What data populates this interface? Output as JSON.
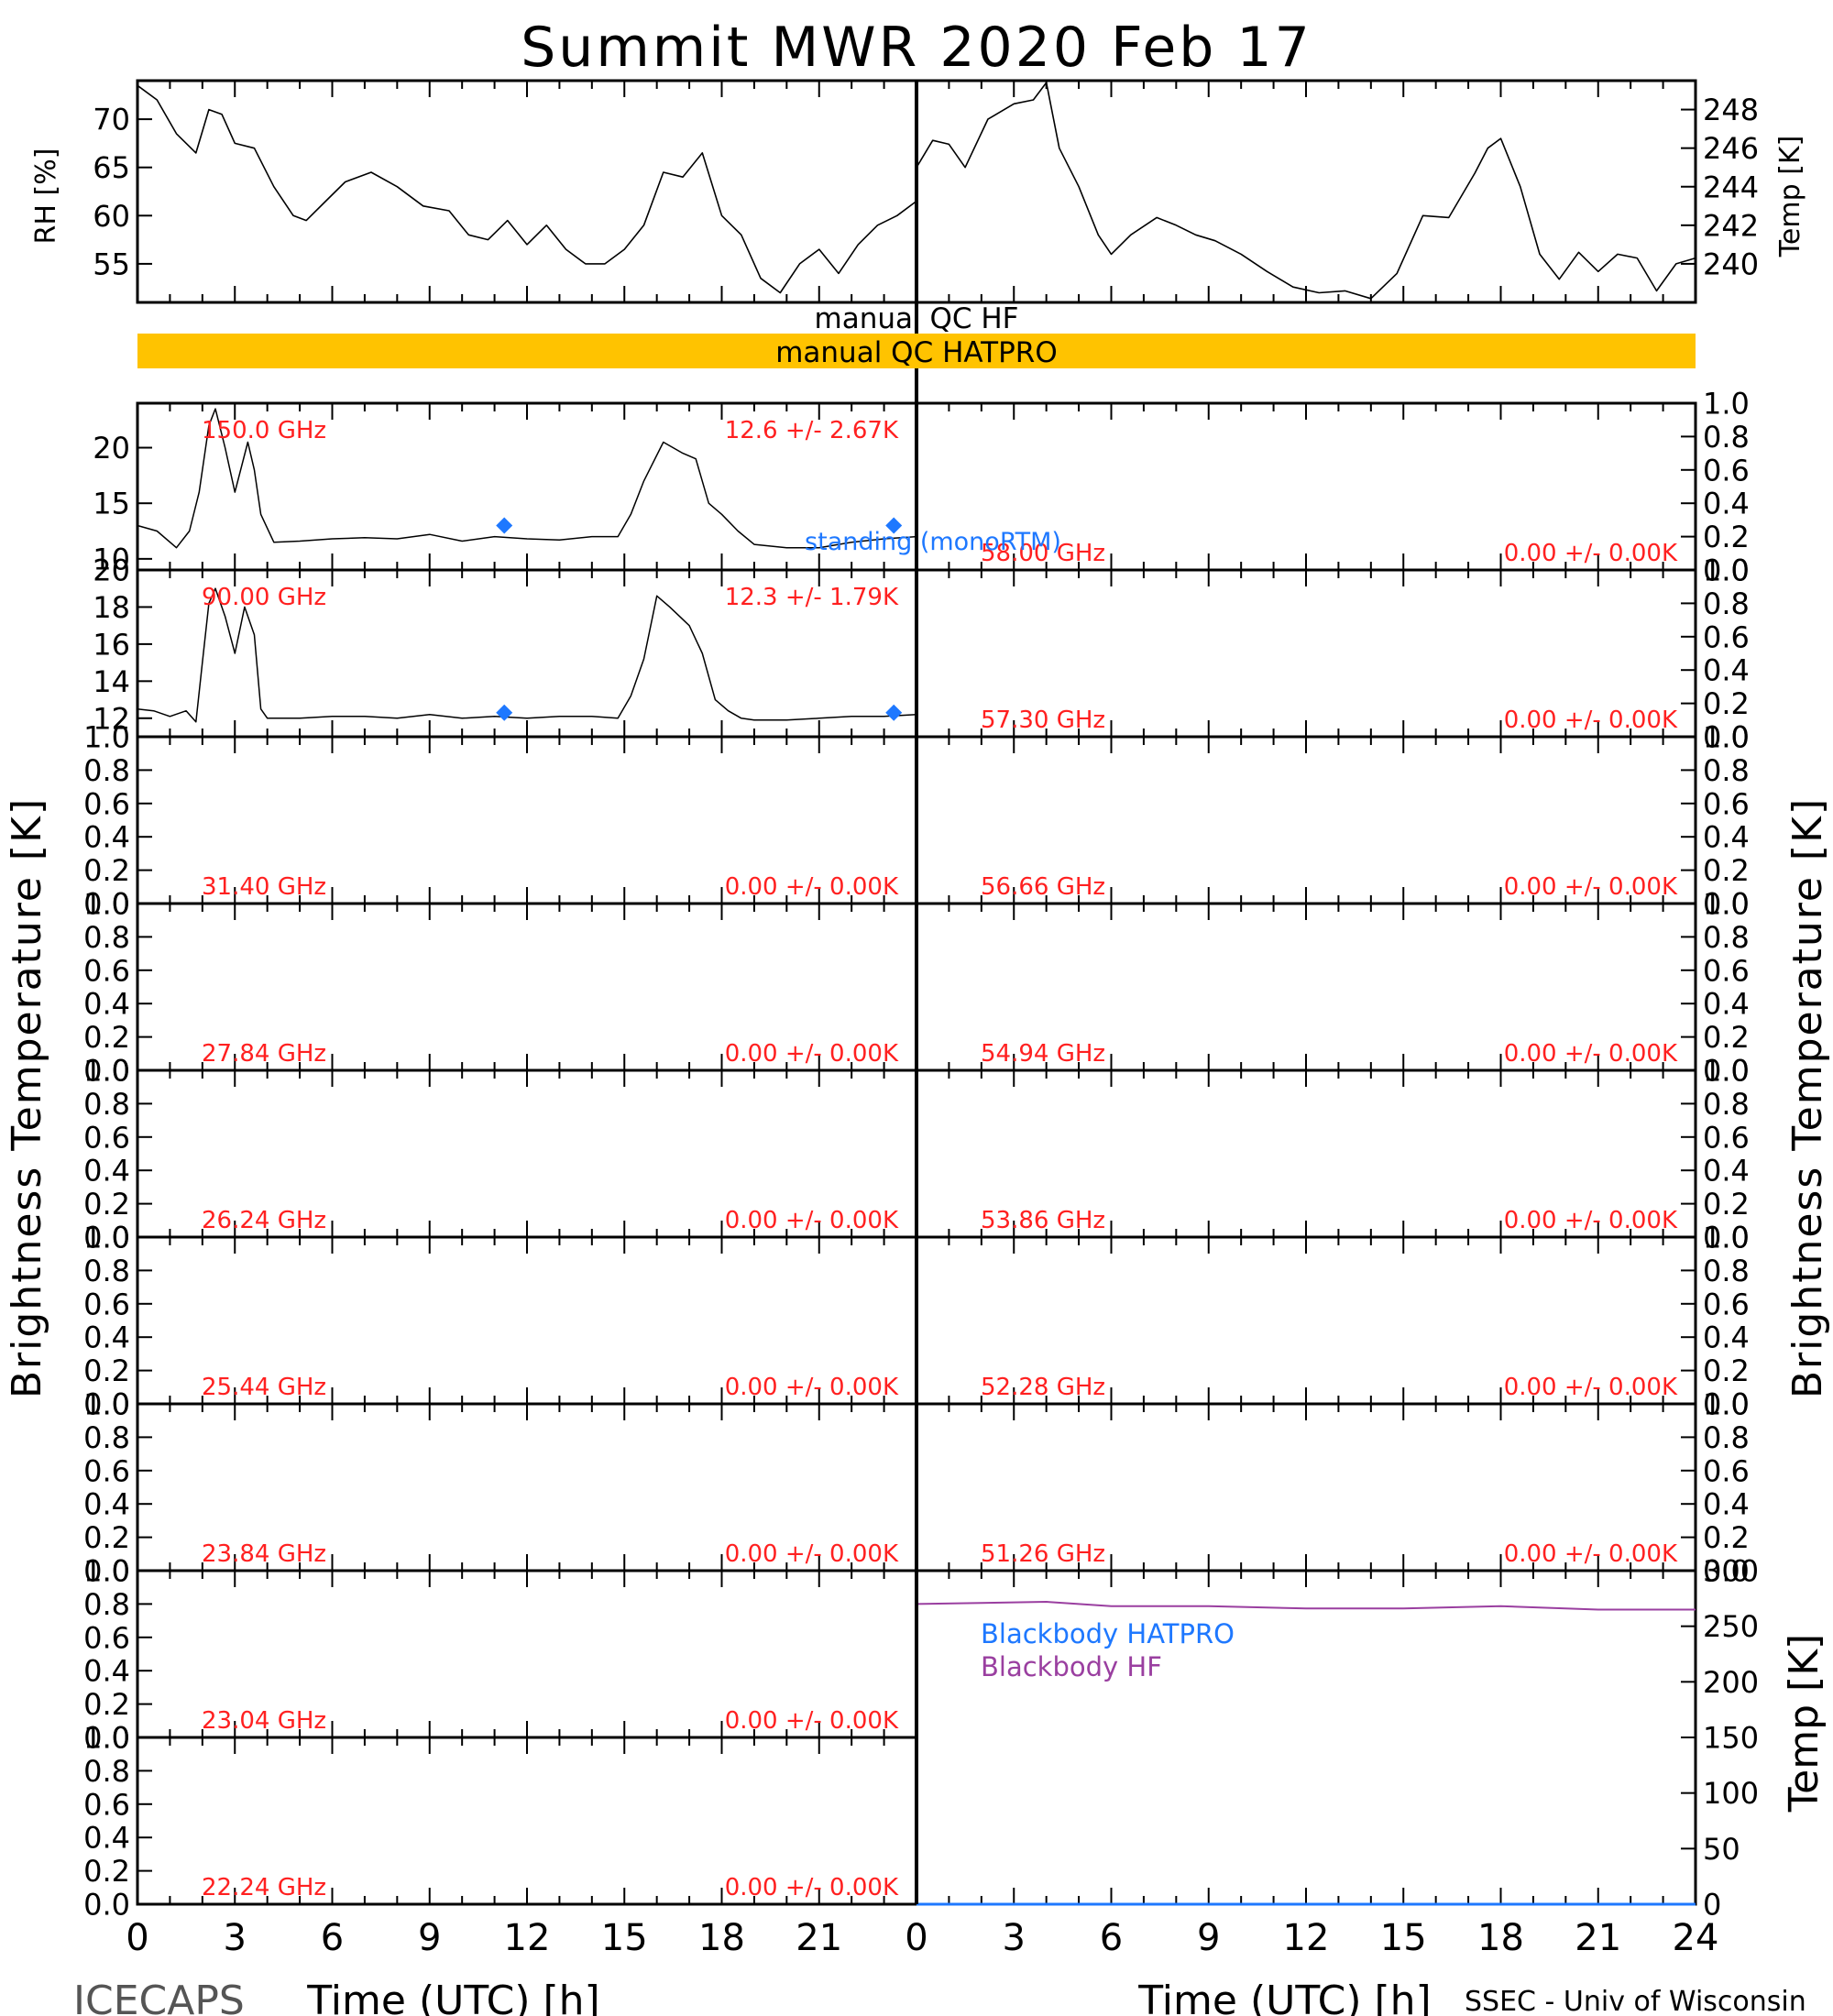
{
  "title": "Summit MWR 2020 Feb 17",
  "footer": {
    "left": "ICECAPS",
    "right": "SSEC - Univ of Wisconsin"
  },
  "xlabel": "Time (UTC) [h]",
  "ylabel_bt": "Brightness Temperature [K]",
  "qc": {
    "hf_label": "manual QC HF",
    "hatpro_label": "manual QC HATPRO",
    "hatpro_color": "#ffc300"
  },
  "colors": {
    "ink": "#000000",
    "annotation": "#ff2020",
    "marker": "#1e78ff",
    "hatpro_bb": "#1e78ff",
    "hf_bb": "#9a3fa0"
  },
  "legend": {
    "standing": "standing (monoRTM)",
    "bb_hatpro": "Blackbody HATPRO",
    "bb_hf": "Blackbody HF"
  },
  "chart_data": [
    {
      "type": "line",
      "id": "rh",
      "ylabel": "RH [%]",
      "xlim": [
        0,
        24
      ],
      "ylim": [
        51,
        74
      ],
      "yticks": [
        55,
        60,
        65,
        70
      ],
      "x": [
        0,
        0.6,
        1.2,
        1.8,
        2.2,
        2.6,
        3.0,
        3.6,
        4.2,
        4.8,
        5.2,
        5.8,
        6.4,
        7.2,
        8.0,
        8.8,
        9.6,
        10.2,
        10.8,
        11.4,
        12.0,
        12.6,
        13.2,
        13.8,
        14.4,
        15.0,
        15.6,
        16.2,
        16.8,
        17.4,
        18.0,
        18.6,
        19.2,
        19.8,
        20.4,
        21.0,
        21.6,
        22.2,
        22.8,
        23.4,
        24
      ],
      "y": [
        73.5,
        72,
        68.5,
        66.5,
        71,
        70.5,
        67.5,
        67,
        63,
        60,
        59.5,
        61.5,
        63.5,
        64.5,
        63,
        61,
        60.5,
        58,
        57.5,
        59.5,
        57,
        59,
        56.5,
        55,
        55,
        56.5,
        59,
        64.5,
        64,
        66.5,
        60,
        58,
        53.5,
        52,
        55,
        56.5,
        54,
        57,
        59,
        60,
        61.5
      ]
    },
    {
      "type": "line",
      "id": "temp",
      "ylabel": "Temp [K]",
      "xlim": [
        0,
        24
      ],
      "ylim": [
        238,
        249.5
      ],
      "yticks": [
        240,
        242,
        244,
        246,
        248
      ],
      "x": [
        0,
        0.5,
        1.0,
        1.5,
        2.2,
        3.0,
        3.6,
        4.0,
        4.4,
        5.0,
        5.6,
        6.0,
        6.6,
        7.4,
        8.0,
        8.6,
        9.2,
        10.0,
        10.8,
        11.6,
        12.4,
        13.2,
        14.0,
        14.8,
        15.6,
        16.4,
        17.2,
        17.6,
        18.0,
        18.6,
        19.2,
        19.8,
        20.4,
        21.0,
        21.6,
        22.2,
        22.8,
        23.4,
        24
      ],
      "y": [
        245,
        246.4,
        246.2,
        245,
        247.5,
        248.3,
        248.5,
        249.4,
        246,
        244,
        241.5,
        240.5,
        241.5,
        242.4,
        242,
        241.5,
        241.2,
        240.5,
        239.6,
        238.8,
        238.5,
        238.6,
        238.2,
        239.5,
        242.5,
        242.4,
        244.7,
        246,
        246.5,
        244,
        240.5,
        239.2,
        240.6,
        239.6,
        240.5,
        240.3,
        238.6,
        240,
        240.3
      ]
    },
    {
      "type": "line",
      "id": "bt-150",
      "frequency": "150.0 GHz",
      "stats": "12.6 +/- 2.67K",
      "xlim": [
        0,
        24
      ],
      "ylim": [
        9,
        24
      ],
      "yticks": [
        10,
        15,
        20
      ],
      "x": [
        0,
        0.6,
        1.2,
        1.6,
        1.9,
        2.2,
        2.4,
        2.7,
        3.0,
        3.4,
        3.6,
        3.8,
        4.2,
        5,
        6,
        7,
        8,
        9,
        10,
        11,
        12,
        13,
        14,
        14.8,
        15.2,
        15.6,
        16.2,
        16.8,
        17.2,
        17.6,
        18,
        18.5,
        19,
        20,
        21,
        22,
        23,
        24
      ],
      "y": [
        13,
        12.5,
        11,
        12.5,
        16,
        22,
        23.5,
        20,
        16,
        20.5,
        18,
        14,
        11.5,
        11.6,
        11.8,
        11.9,
        11.8,
        12.2,
        11.6,
        12,
        11.8,
        11.7,
        12,
        12,
        14,
        17,
        20.5,
        19.5,
        19,
        15,
        14,
        12.5,
        11.3,
        11,
        11,
        11.5,
        11.8,
        12
      ]
    },
    {
      "type": "line",
      "id": "bt-90",
      "frequency": "90.00 GHz",
      "stats": "12.3 +/- 1.79K",
      "xlim": [
        0,
        24
      ],
      "ylim": [
        11,
        20
      ],
      "yticks": [
        12,
        14,
        16,
        18,
        20
      ],
      "x": [
        0,
        0.5,
        1.0,
        1.5,
        1.8,
        2.0,
        2.2,
        2.4,
        2.7,
        3.0,
        3.3,
        3.6,
        3.8,
        4.0,
        5,
        6,
        7,
        8,
        9,
        10,
        11,
        12,
        13,
        14,
        14.8,
        15.2,
        15.6,
        16.0,
        16.4,
        17.0,
        17.4,
        17.8,
        18.2,
        18.6,
        19,
        20,
        21,
        22,
        23,
        24
      ],
      "y": [
        12.5,
        12.4,
        12.1,
        12.4,
        11.8,
        15,
        18.2,
        19,
        17.5,
        15.5,
        18,
        16.5,
        12.5,
        12,
        12,
        12.1,
        12.1,
        12,
        12.2,
        12,
        12.1,
        12,
        12.1,
        12.1,
        12,
        13.2,
        15.2,
        18.6,
        18,
        17,
        15.5,
        13,
        12.4,
        12,
        11.9,
        11.9,
        12,
        12.1,
        12.1,
        12.2
      ]
    },
    {
      "type": "table",
      "id": "empty-channels",
      "note": "empty panels, y axis 0.0-1.0",
      "yticks": [
        "0.0",
        "0.2",
        "0.4",
        "0.6",
        "0.8",
        "1.0"
      ],
      "left": [
        {
          "frequency": "31.40 GHz",
          "stats": "0.00 +/- 0.00K"
        },
        {
          "frequency": "27.84 GHz",
          "stats": "0.00 +/- 0.00K"
        },
        {
          "frequency": "26.24 GHz",
          "stats": "0.00 +/- 0.00K"
        },
        {
          "frequency": "25.44 GHz",
          "stats": "0.00 +/- 0.00K"
        },
        {
          "frequency": "23.84 GHz",
          "stats": "0.00 +/- 0.00K"
        },
        {
          "frequency": "23.04 GHz",
          "stats": "0.00 +/- 0.00K"
        },
        {
          "frequency": "22.24 GHz",
          "stats": "0.00 +/- 0.00K"
        }
      ],
      "right": [
        {
          "frequency": "58.00 GHz",
          "stats": "0.00 +/- 0.00K"
        },
        {
          "frequency": "57.30 GHz",
          "stats": "0.00 +/- 0.00K"
        },
        {
          "frequency": "56.66 GHz",
          "stats": "0.00 +/- 0.00K"
        },
        {
          "frequency": "54.94 GHz",
          "stats": "0.00 +/- 0.00K"
        },
        {
          "frequency": "53.86 GHz",
          "stats": "0.00 +/- 0.00K"
        },
        {
          "frequency": "52.28 GHz",
          "stats": "0.00 +/- 0.00K"
        },
        {
          "frequency": "51.26 GHz",
          "stats": "0.00 +/- 0.00K"
        }
      ]
    },
    {
      "type": "line",
      "id": "blackbody",
      "ylabel": "Temp [K]",
      "xlim": [
        0,
        24
      ],
      "ylim": [
        0,
        300
      ],
      "yticks": [
        0,
        50,
        100,
        150,
        200,
        250,
        300
      ],
      "series": [
        {
          "name": "Blackbody HF",
          "x": [
            0,
            2,
            4,
            6,
            9,
            12,
            15,
            18,
            21,
            24
          ],
          "y": [
            270,
            271,
            272,
            268,
            268,
            266,
            266,
            268,
            265,
            265
          ]
        },
        {
          "name": "Blackbody HATPRO",
          "x": [
            0,
            24
          ],
          "y": [
            0,
            0
          ]
        }
      ]
    }
  ],
  "xticks": [
    "0",
    "3",
    "6",
    "9",
    "12",
    "15",
    "18",
    "21",
    "24"
  ],
  "left_xticks": [
    "0",
    "3",
    "6",
    "9",
    "12",
    "15",
    "18",
    "21"
  ],
  "standing_markers": {
    "x": [
      11.3,
      23.3
    ],
    "y150": 13.0,
    "y90": 12.3
  }
}
